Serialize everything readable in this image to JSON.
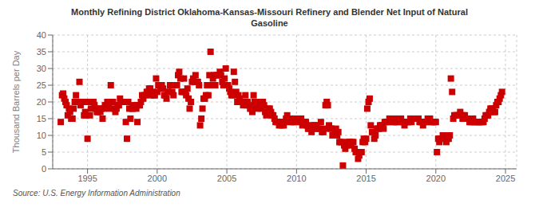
{
  "chart_data": {
    "type": "scatter",
    "title": "Monthly Refining District Oklahoma-Kansas-Missouri Refinery and Blender Net Input of Natural\nGasoline",
    "ylabel": "Thousand Barrels per Day",
    "annotations": [
      "Source: U.S. Energy Information Administration"
    ],
    "color": "#cc0000",
    "marker": "square",
    "grid": true,
    "xlim": [
      1992.5,
      2025.8
    ],
    "xticks": [
      1995,
      2000,
      2005,
      2010,
      2015,
      2020,
      2025
    ],
    "ylim": [
      0,
      40
    ],
    "yticks": [
      0,
      5,
      10,
      15,
      20,
      25,
      30,
      35,
      40
    ],
    "x": [
      1993.08,
      1993.17,
      1993.25,
      1993.33,
      1993.42,
      1993.5,
      1993.58,
      1993.67,
      1993.75,
      1993.83,
      1993.92,
      1994.0,
      1994.08,
      1994.17,
      1994.25,
      1994.33,
      1994.42,
      1994.5,
      1994.58,
      1994.67,
      1994.75,
      1994.83,
      1994.92,
      1995.0,
      1995.08,
      1995.17,
      1995.25,
      1995.33,
      1995.42,
      1995.5,
      1995.58,
      1995.67,
      1995.75,
      1995.83,
      1995.92,
      1996.0,
      1996.08,
      1996.17,
      1996.25,
      1996.33,
      1996.42,
      1996.5,
      1996.58,
      1996.67,
      1996.75,
      1996.83,
      1996.92,
      1997.0,
      1997.08,
      1997.17,
      1997.25,
      1997.33,
      1997.42,
      1997.5,
      1997.58,
      1997.67,
      1997.75,
      1997.83,
      1997.92,
      1998.0,
      1998.08,
      1998.17,
      1998.25,
      1998.33,
      1998.42,
      1998.5,
      1998.58,
      1998.67,
      1998.75,
      1998.83,
      1998.92,
      1999.0,
      1999.08,
      1999.17,
      1999.25,
      1999.33,
      1999.42,
      1999.5,
      1999.58,
      1999.67,
      1999.75,
      1999.83,
      1999.92,
      2000.0,
      2000.08,
      2000.17,
      2000.25,
      2000.33,
      2000.42,
      2000.5,
      2000.58,
      2000.67,
      2000.75,
      2000.83,
      2000.92,
      2001.0,
      2001.08,
      2001.17,
      2001.25,
      2001.33,
      2001.42,
      2001.5,
      2001.58,
      2001.67,
      2001.75,
      2001.83,
      2001.92,
      2002.0,
      2002.08,
      2002.17,
      2002.25,
      2002.33,
      2002.42,
      2002.5,
      2002.58,
      2002.67,
      2002.75,
      2002.83,
      2002.92,
      2003.0,
      2003.08,
      2003.17,
      2003.25,
      2003.33,
      2003.42,
      2003.5,
      2003.58,
      2003.67,
      2003.75,
      2003.83,
      2003.92,
      2004.0,
      2004.08,
      2004.17,
      2004.25,
      2004.33,
      2004.42,
      2004.5,
      2004.58,
      2004.67,
      2004.75,
      2004.83,
      2004.92,
      2005.0,
      2005.08,
      2005.17,
      2005.25,
      2005.33,
      2005.42,
      2005.5,
      2005.58,
      2005.67,
      2005.75,
      2005.83,
      2005.92,
      2006.0,
      2006.08,
      2006.17,
      2006.25,
      2006.33,
      2006.42,
      2006.5,
      2006.58,
      2006.67,
      2006.75,
      2006.83,
      2006.92,
      2007.0,
      2007.08,
      2007.17,
      2007.25,
      2007.33,
      2007.42,
      2007.5,
      2007.58,
      2007.67,
      2007.75,
      2007.83,
      2007.92,
      2008.0,
      2008.08,
      2008.17,
      2008.25,
      2008.33,
      2008.42,
      2008.5,
      2008.58,
      2008.67,
      2008.75,
      2008.83,
      2008.92,
      2009.0,
      2009.08,
      2009.17,
      2009.25,
      2009.33,
      2009.42,
      2009.5,
      2009.58,
      2009.67,
      2009.75,
      2009.83,
      2009.92,
      2010.0,
      2010.08,
      2010.17,
      2010.25,
      2010.33,
      2010.42,
      2010.5,
      2010.58,
      2010.67,
      2010.75,
      2010.83,
      2010.92,
      2011.0,
      2011.08,
      2011.17,
      2011.25,
      2011.33,
      2011.42,
      2011.5,
      2011.58,
      2011.67,
      2011.75,
      2011.83,
      2011.92,
      2012.0,
      2012.08,
      2012.17,
      2012.25,
      2012.33,
      2012.42,
      2012.5,
      2012.58,
      2012.67,
      2012.75,
      2012.83,
      2012.92,
      2013.0,
      2013.08,
      2013.17,
      2013.25,
      2013.33,
      2013.42,
      2013.5,
      2013.58,
      2013.67,
      2013.75,
      2013.83,
      2013.92,
      2014.0,
      2014.08,
      2014.17,
      2014.25,
      2014.33,
      2014.42,
      2014.5,
      2014.58,
      2014.67,
      2014.75,
      2014.83,
      2014.92,
      2015.0,
      2015.08,
      2015.17,
      2015.25,
      2015.33,
      2015.42,
      2015.5,
      2015.58,
      2015.67,
      2015.75,
      2015.83,
      2015.92,
      2016.0,
      2016.08,
      2016.17,
      2016.25,
      2016.33,
      2016.42,
      2016.5,
      2016.58,
      2016.67,
      2016.75,
      2016.83,
      2016.92,
      2017.0,
      2017.08,
      2017.17,
      2017.25,
      2017.33,
      2017.42,
      2017.5,
      2017.58,
      2017.67,
      2017.75,
      2017.83,
      2017.92,
      2018.0,
      2018.08,
      2018.17,
      2018.25,
      2018.33,
      2018.42,
      2018.5,
      2018.58,
      2018.67,
      2018.75,
      2018.83,
      2018.92,
      2019.0,
      2019.08,
      2019.17,
      2019.25,
      2019.33,
      2019.42,
      2019.5,
      2019.58,
      2019.67,
      2019.75,
      2019.83,
      2019.92,
      2020.0,
      2020.08,
      2020.17,
      2020.25,
      2020.33,
      2020.42,
      2020.5,
      2020.58,
      2020.67,
      2020.75,
      2020.83,
      2020.92,
      2021.0,
      2021.08,
      2021.17,
      2021.25,
      2021.33,
      2021.42,
      2021.5,
      2021.58,
      2021.67,
      2021.75,
      2021.83,
      2021.92,
      2022.0,
      2022.08,
      2022.17,
      2022.25,
      2022.33,
      2022.42,
      2022.5,
      2022.58,
      2022.67,
      2022.75,
      2022.83,
      2022.92,
      2023.0,
      2023.08,
      2023.17,
      2023.25,
      2023.33,
      2023.42,
      2023.5,
      2023.58,
      2023.67,
      2023.75,
      2023.83,
      2023.92,
      2024.0,
      2024.08,
      2024.17,
      2024.25,
      2024.33,
      2024.42,
      2024.5,
      2024.58,
      2024.67,
      2024.75
    ],
    "values": [
      14.0,
      22.0,
      22.5,
      21.0,
      20.0,
      19.0,
      16.0,
      18.0,
      17.0,
      15.0,
      15.0,
      18.0,
      20.0,
      22.0,
      20.0,
      20.0,
      26.0,
      19.0,
      20.0,
      20.0,
      16.0,
      17.0,
      16.0,
      9.0,
      20.0,
      16.0,
      18.0,
      20.0,
      20.0,
      19.0,
      18.0,
      17.0,
      17.0,
      18.0,
      17.0,
      18.0,
      15.0,
      18.0,
      19.0,
      19.0,
      20.0,
      19.0,
      18.0,
      25.0,
      20.0,
      20.0,
      18.0,
      17.0,
      18.0,
      19.0,
      19.0,
      21.0,
      20.0,
      20.0,
      20.0,
      20.0,
      14.0,
      9.0,
      20.0,
      18.0,
      15.0,
      18.0,
      18.0,
      19.0,
      19.0,
      18.0,
      14.0,
      19.0,
      19.0,
      20.0,
      22.0,
      21.0,
      22.0,
      22.0,
      23.0,
      23.0,
      24.0,
      24.0,
      22.0,
      23.0,
      22.0,
      22.0,
      27.0,
      23.0,
      25.0,
      25.0,
      24.0,
      25.0,
      24.0,
      22.0,
      22.0,
      21.0,
      23.0,
      23.0,
      25.0,
      25.0,
      23.0,
      22.0,
      25.0,
      25.0,
      25.0,
      28.0,
      29.0,
      27.0,
      23.0,
      23.0,
      27.0,
      23.0,
      22.0,
      24.0,
      21.0,
      18.0,
      20.0,
      26.0,
      27.0,
      26.0,
      28.0,
      26.0,
      26.0,
      25.0,
      13.0,
      15.0,
      18.0,
      21.0,
      21.0,
      22.0,
      25.0,
      22.0,
      28.0,
      35.0,
      25.0,
      27.0,
      28.0,
      25.0,
      28.0,
      28.0,
      28.0,
      29.0,
      28.0,
      26.0,
      25.0,
      27.0,
      30.0,
      25.0,
      25.0,
      24.0,
      23.0,
      22.0,
      22.0,
      29.0,
      26.0,
      23.0,
      20.0,
      22.0,
      21.0,
      20.0,
      20.0,
      19.0,
      20.0,
      22.0,
      19.0,
      20.0,
      19.0,
      18.0,
      18.0,
      17.0,
      22.0,
      20.0,
      19.0,
      18.0,
      19.0,
      20.0,
      19.0,
      18.0,
      20.0,
      19.0,
      17.0,
      16.0,
      17.0,
      18.0,
      18.0,
      17.0,
      16.0,
      16.0,
      15.0,
      14.0,
      14.0,
      14.0,
      13.0,
      14.0,
      13.0,
      14.0,
      13.0,
      14.0,
      15.0,
      16.0,
      15.0,
      15.0,
      14.0,
      14.0,
      14.0,
      15.0,
      14.0,
      15.0,
      15.0,
      14.0,
      15.0,
      15.0,
      13.0,
      14.0,
      14.0,
      14.0,
      13.0,
      12.0,
      12.0,
      13.0,
      11.0,
      12.0,
      13.0,
      13.0,
      13.0,
      12.0,
      12.0,
      12.0,
      14.0,
      11.0,
      11.0,
      12.0,
      19.0,
      20.0,
      19.0,
      13.0,
      12.0,
      12.0,
      10.0,
      10.0,
      11.0,
      12.0,
      10.0,
      11.0,
      8.0,
      8.0,
      8.0,
      1.0,
      7.0,
      6.0,
      7.0,
      8.0,
      8.0,
      8.0,
      7.0,
      8.0,
      8.0,
      6.0,
      5.0,
      5.0,
      3.0,
      4.0,
      5.0,
      5.0,
      8.0,
      9.0,
      8.0,
      9.0,
      18.0,
      20.0,
      21.0,
      13.0,
      11.0,
      11.0,
      9.0,
      10.0,
      12.0,
      12.0,
      12.0,
      13.0,
      13.0,
      13.0,
      12.0,
      14.0,
      14.0,
      14.0,
      14.0,
      15.0,
      15.0,
      15.0,
      14.0,
      14.0,
      14.0,
      14.0,
      15.0,
      14.0,
      15.0,
      15.0,
      14.0,
      14.0,
      13.0,
      14.0,
      14.0,
      14.0,
      14.0,
      15.0,
      14.0,
      15.0,
      15.0,
      15.0,
      15.0,
      15.0,
      15.0,
      14.0,
      14.0,
      14.0,
      13.0,
      14.0,
      14.0,
      14.0,
      15.0,
      15.0,
      15.0,
      14.0,
      14.0,
      14.0,
      14.0,
      14.0,
      5.0,
      9.0,
      8.0,
      9.0,
      9.0,
      10.0,
      10.0,
      10.0,
      8.0,
      9.0,
      9.0,
      10.0,
      27.0,
      23.0,
      15.0,
      16.0,
      16.0,
      16.0,
      16.0,
      16.0,
      17.0,
      16.0,
      15.0,
      16.0,
      16.0,
      15.0,
      15.0,
      15.0,
      14.0,
      14.0,
      14.0,
      15.0,
      14.0,
      14.0,
      14.0,
      14.0,
      14.0,
      14.0,
      14.0,
      14.0,
      14.0,
      15.0,
      16.0,
      16.0,
      16.0,
      17.0,
      18.0,
      18.0,
      18.0,
      17.0,
      17.0,
      19.0,
      20.0,
      20.0,
      21.0,
      22.0,
      23.0
    ]
  }
}
